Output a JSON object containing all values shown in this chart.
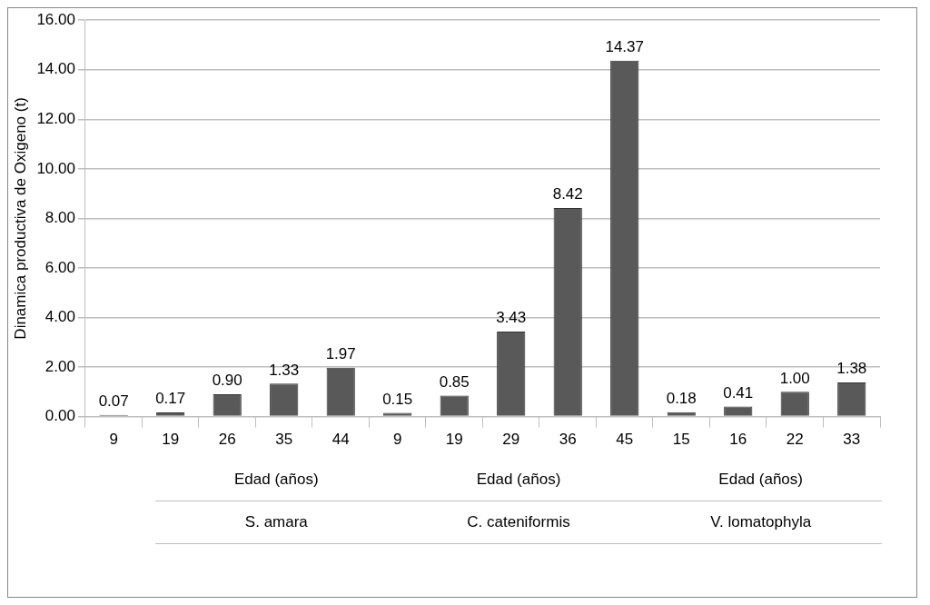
{
  "chart_data": {
    "type": "bar",
    "ylabel": "Dinamica productiva de Oxigeno (t)",
    "categories": [
      "9",
      "19",
      "26",
      "35",
      "44",
      "9",
      "19",
      "29",
      "36",
      "45",
      "15",
      "16",
      "22",
      "33"
    ],
    "values": [
      0.07,
      0.17,
      0.9,
      1.33,
      1.97,
      0.15,
      0.85,
      3.43,
      8.42,
      14.37,
      0.18,
      0.41,
      1.0,
      1.38
    ],
    "value_labels": [
      "0.07",
      "0.17",
      "0.90",
      "1.33",
      "1.97",
      "0.15",
      "0.85",
      "3.43",
      "8.42",
      "14.37",
      "0.18",
      "0.41",
      "1.00",
      "1.38"
    ],
    "color": "#595959",
    "grid": "y",
    "legend": false,
    "ylim": [
      0,
      16
    ],
    "yticks": [
      {
        "value": 0,
        "label": "0.00"
      },
      {
        "value": 2,
        "label": "2.00"
      },
      {
        "value": 4,
        "label": "4.00"
      },
      {
        "value": 6,
        "label": "6.00"
      },
      {
        "value": 8,
        "label": "8.00"
      },
      {
        "value": 10,
        "label": "10.00"
      },
      {
        "value": 12,
        "label": "12.00"
      },
      {
        "value": 14,
        "label": "14.00"
      },
      {
        "value": 16,
        "label": "16.00"
      }
    ],
    "annotations": [
      "Edad (años)",
      "Edad (años)",
      "Edad (años)",
      "S. amara",
      "C. cateniformis",
      "V. lomatophyla"
    ]
  }
}
